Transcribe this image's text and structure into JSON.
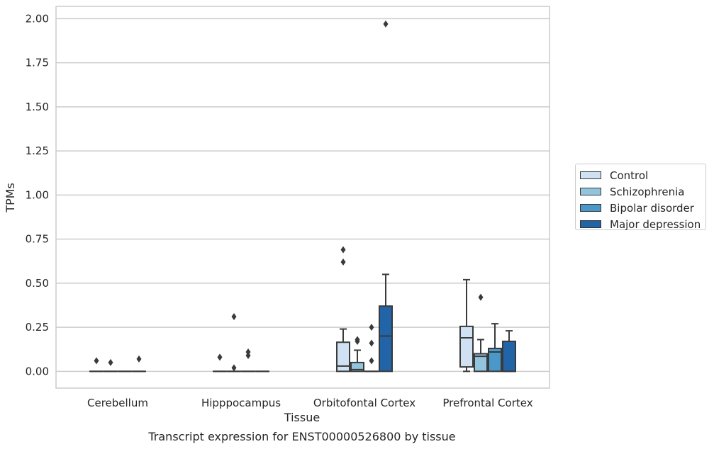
{
  "chart_data": {
    "type": "box",
    "title": "",
    "caption": "Transcript expression for ENST00000526800 by tissue",
    "xlabel": "Tissue",
    "ylabel": "TPMs",
    "ylim": [
      -0.095,
      2.07
    ],
    "yticks": [
      "0.00",
      "0.25",
      "0.50",
      "0.75",
      "1.00",
      "1.25",
      "1.50",
      "1.75",
      "2.00"
    ],
    "grid": true,
    "legend_position": "right",
    "categories": [
      "Cerebellum",
      "Hipppocampus",
      "Orbitofontal Cortex",
      "Prefrontal Cortex"
    ],
    "series": [
      {
        "name": "Control",
        "color": "#cfe1f2",
        "boxes": [
          {
            "q1": 0,
            "median": 0,
            "q3": 0,
            "whislo": 0,
            "whishi": 0,
            "fliers": [
              0.06
            ]
          },
          {
            "q1": 0,
            "median": 0,
            "q3": 0,
            "whislo": 0,
            "whishi": 0,
            "fliers": [
              0.08
            ]
          },
          {
            "q1": 0.0,
            "median": 0.03,
            "q3": 0.165,
            "whislo": 0,
            "whishi": 0.24,
            "fliers": [
              0.69,
              0.62
            ]
          },
          {
            "q1": 0.025,
            "median": 0.19,
            "q3": 0.255,
            "whislo": 0,
            "whishi": 0.52,
            "fliers": []
          }
        ]
      },
      {
        "name": "Schizophrenia",
        "color": "#93c4de",
        "boxes": [
          {
            "q1": 0,
            "median": 0,
            "q3": 0,
            "whislo": 0,
            "whishi": 0,
            "fliers": [
              0.05
            ]
          },
          {
            "q1": 0,
            "median": 0,
            "q3": 0,
            "whislo": 0,
            "whishi": 0,
            "fliers": [
              0.31,
              0.02
            ]
          },
          {
            "q1": 0,
            "median": 0.01,
            "q3": 0.05,
            "whislo": 0,
            "whishi": 0.12,
            "fliers": [
              0.18,
              0.17
            ]
          },
          {
            "q1": 0,
            "median": 0.085,
            "q3": 0.1,
            "whislo": 0,
            "whishi": 0.18,
            "fliers": [
              0.42
            ]
          }
        ]
      },
      {
        "name": "Bipolar disorder",
        "color": "#4a98c9",
        "boxes": [
          {
            "q1": 0,
            "median": 0,
            "q3": 0,
            "whislo": 0,
            "whishi": 0,
            "fliers": []
          },
          {
            "q1": 0,
            "median": 0,
            "q3": 0,
            "whislo": 0,
            "whishi": 0,
            "fliers": [
              0.11,
              0.09
            ]
          },
          {
            "q1": 0,
            "median": 0,
            "q3": 0,
            "whislo": 0,
            "whishi": 0,
            "fliers": [
              0.25,
              0.16,
              0.06
            ]
          },
          {
            "q1": 0,
            "median": 0.11,
            "q3": 0.13,
            "whislo": 0,
            "whishi": 0.27,
            "fliers": []
          }
        ]
      },
      {
        "name": "Major depression",
        "color": "#2264a8",
        "boxes": [
          {
            "q1": 0,
            "median": 0,
            "q3": 0,
            "whislo": 0,
            "whishi": 0,
            "fliers": [
              0.07
            ]
          },
          {
            "q1": 0,
            "median": 0,
            "q3": 0,
            "whislo": 0,
            "whishi": 0,
            "fliers": []
          },
          {
            "q1": 0,
            "median": 0.2,
            "q3": 0.37,
            "whislo": 0,
            "whishi": 0.55,
            "fliers": [
              1.97
            ]
          },
          {
            "q1": 0,
            "median": 0.0,
            "q3": 0.17,
            "whislo": 0,
            "whishi": 0.23,
            "fliers": []
          }
        ]
      }
    ]
  }
}
